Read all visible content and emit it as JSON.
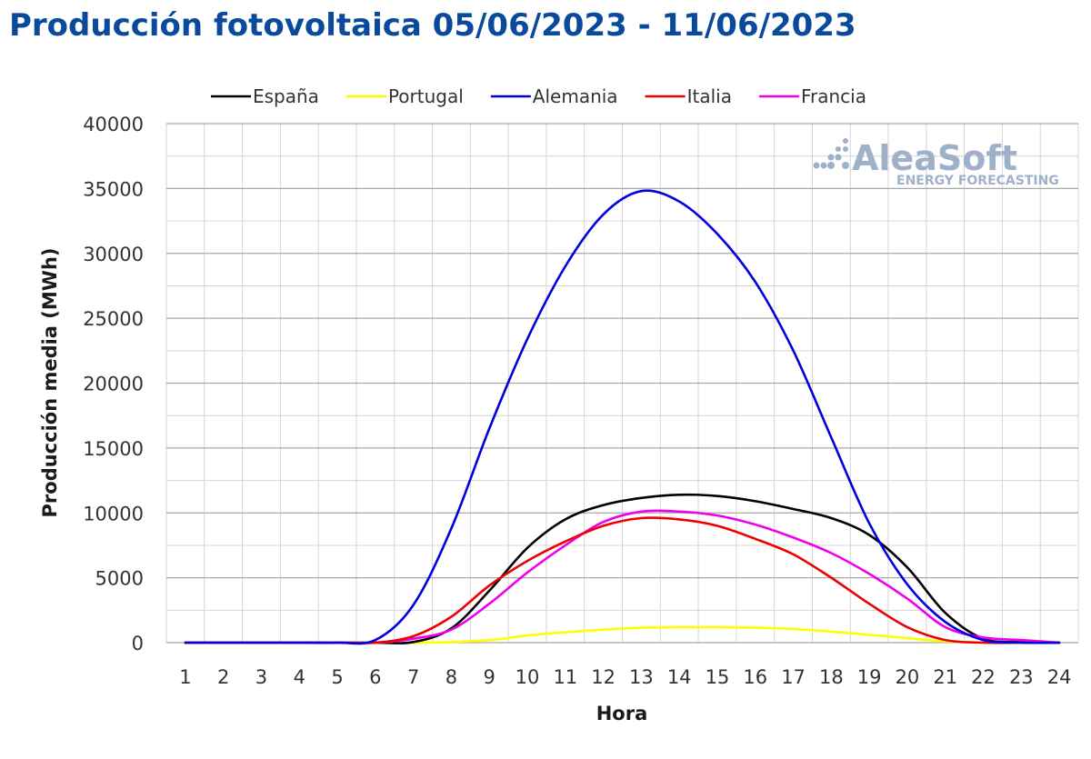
{
  "page": {
    "title": "Producción fotovoltaica 05/06/2023 - 11/06/2023"
  },
  "logo": {
    "name": "AleaSoft",
    "tagline": "ENERGY FORECASTING"
  },
  "chart_data": {
    "type": "line",
    "xlabel": "Hora",
    "ylabel": "Producción media (MWh)",
    "ylim": [
      0,
      40000
    ],
    "yticks": [
      0,
      5000,
      10000,
      15000,
      20000,
      25000,
      30000,
      35000,
      40000
    ],
    "x": [
      1,
      2,
      3,
      4,
      5,
      6,
      7,
      8,
      9,
      10,
      11,
      12,
      13,
      14,
      15,
      16,
      17,
      18,
      19,
      20,
      21,
      22,
      23,
      24
    ],
    "grid": true,
    "legend_position": "top",
    "series": [
      {
        "name": "España",
        "color": "#000000",
        "values": [
          0,
          0,
          0,
          0,
          0,
          0,
          50,
          1100,
          4000,
          7300,
          9500,
          10600,
          11150,
          11400,
          11300,
          10900,
          10300,
          9600,
          8300,
          5800,
          2300,
          300,
          50,
          0
        ]
      },
      {
        "name": "Portugal",
        "color": "#ffff00",
        "values": [
          0,
          0,
          0,
          0,
          0,
          0,
          0,
          50,
          200,
          550,
          800,
          1000,
          1150,
          1200,
          1200,
          1150,
          1050,
          850,
          600,
          350,
          100,
          0,
          0,
          0
        ]
      },
      {
        "name": "Alemania",
        "color": "#0000dd",
        "values": [
          0,
          0,
          0,
          0,
          0,
          200,
          2900,
          8800,
          16500,
          23400,
          29000,
          33000,
          34800,
          34000,
          31500,
          27800,
          22500,
          15800,
          9200,
          4500,
          1600,
          200,
          0,
          0
        ]
      },
      {
        "name": "Italia",
        "color": "#ee0000",
        "values": [
          0,
          0,
          0,
          0,
          0,
          0,
          500,
          2000,
          4400,
          6300,
          7800,
          9000,
          9600,
          9500,
          9000,
          8000,
          6800,
          5000,
          3000,
          1200,
          200,
          0,
          0,
          0
        ]
      },
      {
        "name": "Francia",
        "color": "#ee00ee",
        "values": [
          0,
          0,
          0,
          0,
          0,
          0,
          300,
          1000,
          3000,
          5400,
          7500,
          9300,
          10100,
          10100,
          9800,
          9100,
          8100,
          6900,
          5300,
          3400,
          1200,
          400,
          200,
          0
        ]
      }
    ]
  }
}
